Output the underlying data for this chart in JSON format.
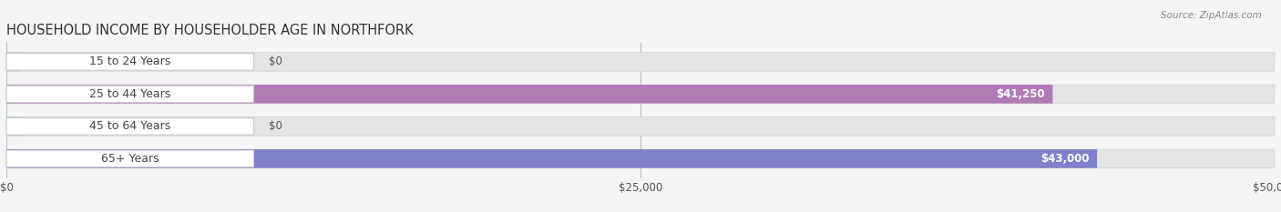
{
  "title": "HOUSEHOLD INCOME BY HOUSEHOLDER AGE IN NORTHFORK",
  "source": "Source: ZipAtlas.com",
  "categories": [
    "15 to 24 Years",
    "25 to 44 Years",
    "45 to 64 Years",
    "65+ Years"
  ],
  "values": [
    0,
    41250,
    0,
    43000
  ],
  "bar_colors": [
    "#9bbfe0",
    "#b07ab5",
    "#7ececa",
    "#8080cc"
  ],
  "value_labels": [
    "$0",
    "$41,250",
    "$0",
    "$43,000"
  ],
  "xlim": [
    0,
    50000
  ],
  "xticks": [
    0,
    25000,
    50000
  ],
  "xticklabels": [
    "$0",
    "$25,000",
    "$50,000"
  ],
  "title_fontsize": 10.5,
  "bar_height": 0.58,
  "label_fontsize": 9.0,
  "value_fontsize": 8.5,
  "fig_bg": "#f5f5f5",
  "bar_bg_color": "#e4e4e4",
  "pill_color": "#ffffff",
  "pill_edge_color": "#cccccc"
}
